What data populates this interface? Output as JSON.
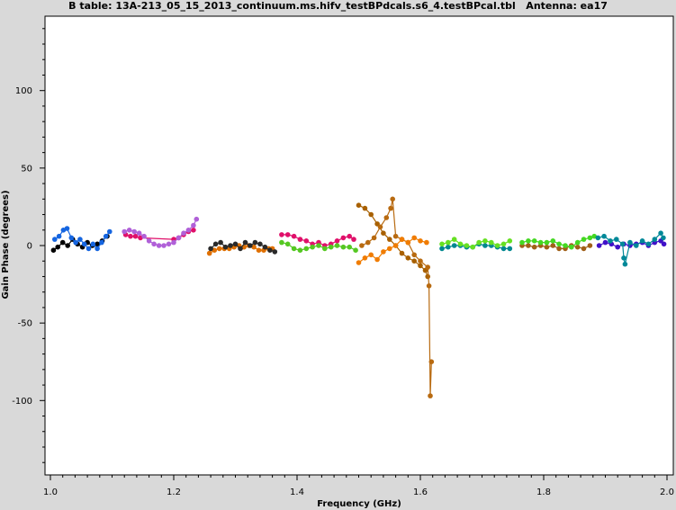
{
  "chart_data": {
    "type": "scatter",
    "title": "B table: 13A-213_05_15_2013_continuum.ms.hifv_testBPdcals.s6_4.testBPcal.tbl   Antenna: ea17",
    "xlabel": "Frequency (GHz)",
    "ylabel": "Gain Phase (degrees)",
    "xlim": [
      1.0,
      2.0
    ],
    "ylim": [
      -148,
      148
    ],
    "xticks": [
      1.0,
      1.2,
      1.4,
      1.6,
      1.8,
      2.0
    ],
    "xtick_labels": [
      "1.0",
      "1.2",
      "1.4",
      "1.6",
      "1.8",
      "2.0"
    ],
    "yticks": [
      -100,
      -50,
      0,
      50,
      100
    ],
    "ytick_labels": [
      "-100",
      "-50",
      "0",
      "50",
      "100"
    ],
    "grid": false,
    "legend": "none",
    "series": [
      {
        "color": "#000000",
        "x": [
          1.005,
          1.012,
          1.02,
          1.028,
          1.036,
          1.044,
          1.052,
          1.06,
          1.068,
          1.076,
          1.084,
          1.092
        ],
        "y": [
          -3,
          -1,
          2,
          0,
          4,
          1,
          -1,
          2,
          0,
          1,
          3,
          6
        ]
      },
      {
        "color": "#1565e0",
        "x": [
          1.007,
          1.014,
          1.021,
          1.027,
          1.034,
          1.041,
          1.048,
          1.055,
          1.062,
          1.069,
          1.076,
          1.083,
          1.09,
          1.096
        ],
        "y": [
          4,
          6,
          10,
          11,
          5,
          2,
          4,
          1,
          -2,
          1,
          -2,
          2,
          6,
          9
        ]
      },
      {
        "color": "#e0106a",
        "x": [
          1.122,
          1.13,
          1.138,
          1.146,
          1.2,
          1.208,
          1.216,
          1.224,
          1.232
        ],
        "y": [
          7,
          6,
          6,
          5,
          4,
          5,
          7,
          9,
          10
        ]
      },
      {
        "color": "#b060d8",
        "x": [
          1.12,
          1.128,
          1.136,
          1.144,
          1.152,
          1.16,
          1.168,
          1.176,
          1.184,
          1.192,
          1.2,
          1.208,
          1.216,
          1.224,
          1.232,
          1.237
        ],
        "y": [
          9,
          10,
          9,
          8,
          6,
          3,
          1,
          0,
          0,
          1,
          2,
          5,
          8,
          10,
          13,
          17
        ]
      },
      {
        "color": "#e07000",
        "x": [
          1.258,
          1.266,
          1.274,
          1.282,
          1.29,
          1.298,
          1.306,
          1.314,
          1.322,
          1.33,
          1.338,
          1.346,
          1.354,
          1.36
        ],
        "y": [
          -5,
          -3,
          -2,
          -2,
          -2,
          -1,
          0,
          -1,
          0,
          -1,
          -3,
          -3,
          -2,
          -2
        ]
      },
      {
        "color": "#2a2a2a",
        "x": [
          1.26,
          1.268,
          1.276,
          1.284,
          1.292,
          1.3,
          1.308,
          1.316,
          1.324,
          1.332,
          1.34,
          1.348,
          1.356,
          1.364
        ],
        "y": [
          -2,
          1,
          2,
          -1,
          0,
          1,
          -2,
          2,
          0,
          2,
          1,
          -1,
          -3,
          -4
        ]
      },
      {
        "color": "#e0106a",
        "x": [
          1.375,
          1.385,
          1.395,
          1.405,
          1.415,
          1.425,
          1.435,
          1.445,
          1.455,
          1.465,
          1.475,
          1.485,
          1.492
        ],
        "y": [
          7,
          7,
          6,
          4,
          3,
          1,
          2,
          0,
          1,
          3,
          5,
          6,
          4
        ]
      },
      {
        "color": "#55c822",
        "x": [
          1.375,
          1.385,
          1.395,
          1.405,
          1.415,
          1.425,
          1.435,
          1.445,
          1.455,
          1.465,
          1.475,
          1.485,
          1.495
        ],
        "y": [
          2,
          1,
          -2,
          -3,
          -2,
          -1,
          0,
          -2,
          -1,
          0,
          -1,
          -1,
          -3
        ]
      },
      {
        "color": "#a86000",
        "x": [
          1.5,
          1.51,
          1.52,
          1.53,
          1.54,
          1.55,
          1.56,
          1.57,
          1.58,
          1.59,
          1.6,
          1.608,
          1.612
        ],
        "y": [
          26,
          24,
          20,
          14,
          8,
          4,
          0,
          -5,
          -8,
          -10,
          -13,
          -16,
          -20
        ]
      },
      {
        "color": "#b86a10",
        "x": [
          1.505,
          1.515,
          1.525,
          1.535,
          1.545,
          1.552,
          1.555,
          1.56,
          1.57,
          1.58,
          1.59,
          1.6,
          1.612,
          1.614,
          1.616,
          1.618
        ],
        "y": [
          0,
          2,
          5,
          12,
          18,
          24,
          30,
          6,
          4,
          2,
          -6,
          -10,
          -14,
          -26,
          -97,
          -75
        ]
      },
      {
        "color": "#f07c00",
        "x": [
          1.5,
          1.51,
          1.52,
          1.53,
          1.54,
          1.55,
          1.56,
          1.57,
          1.58,
          1.59,
          1.6,
          1.61
        ],
        "y": [
          -11,
          -8,
          -6,
          -9,
          -4,
          -2,
          0,
          4,
          2,
          5,
          3,
          2
        ]
      },
      {
        "color": "#008890",
        "x": [
          1.635,
          1.645,
          1.655,
          1.665,
          1.675,
          1.685,
          1.695,
          1.705,
          1.715,
          1.725,
          1.735,
          1.745
        ],
        "y": [
          -2,
          -1,
          0,
          0,
          -1,
          -1,
          1,
          0,
          0,
          -1,
          -2,
          -2
        ]
      },
      {
        "color": "#66e022",
        "x": [
          1.635,
          1.645,
          1.655,
          1.665,
          1.675,
          1.685,
          1.695,
          1.705,
          1.715,
          1.725,
          1.735,
          1.745
        ],
        "y": [
          1,
          2,
          4,
          1,
          0,
          -1,
          2,
          3,
          2,
          0,
          1,
          3
        ]
      },
      {
        "color": "#a06018",
        "x": [
          1.765,
          1.775,
          1.785,
          1.795,
          1.805,
          1.815,
          1.825,
          1.835,
          1.845,
          1.855,
          1.865,
          1.875
        ],
        "y": [
          0,
          0,
          -1,
          0,
          -1,
          0,
          -2,
          -2,
          0,
          -1,
          -2,
          0
        ]
      },
      {
        "color": "#44d822",
        "x": [
          1.765,
          1.775,
          1.785,
          1.795,
          1.805,
          1.815,
          1.825,
          1.835,
          1.845,
          1.855,
          1.865,
          1.875,
          1.882
        ],
        "y": [
          2,
          3,
          3,
          2,
          2,
          3,
          1,
          0,
          -1,
          2,
          4,
          5,
          6
        ]
      },
      {
        "color": "#4010c8",
        "x": [
          1.89,
          1.9,
          1.91,
          1.92,
          1.93,
          1.94,
          1.95,
          1.96,
          1.97,
          1.98,
          1.99,
          1.995
        ],
        "y": [
          0,
          2,
          1,
          -1,
          1,
          0,
          1,
          2,
          0,
          2,
          3,
          1
        ]
      },
      {
        "color": "#008898",
        "x": [
          1.888,
          1.898,
          1.908,
          1.918,
          1.928,
          1.93,
          1.932,
          1.94,
          1.95,
          1.96,
          1.97,
          1.98,
          1.99,
          1.994
        ],
        "y": [
          5,
          6,
          3,
          4,
          1,
          -8,
          -12,
          2,
          0,
          3,
          1,
          4,
          8,
          5
        ]
      }
    ]
  }
}
